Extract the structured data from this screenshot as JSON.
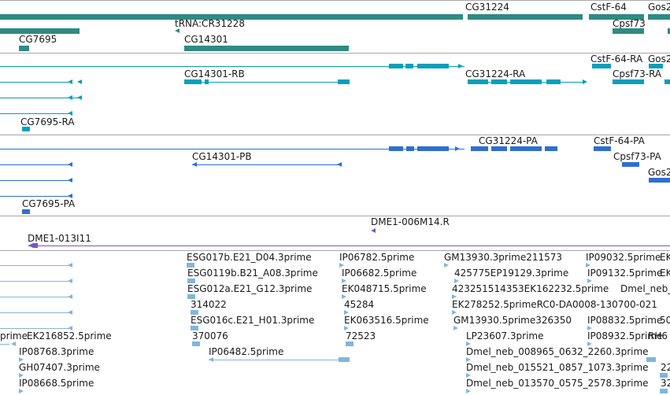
{
  "colors": {
    "gene": "#2e8b83",
    "transcript": "#06a0ba",
    "cds": "#2f6fcf",
    "clone": "#7b55c7",
    "est": "#7fb6df",
    "separator": "#a8a8a8"
  },
  "tracks": {
    "genes": {
      "labels": [
        "CG31224",
        "CstF-64",
        "Gos2",
        "tRNA:CR31228",
        "CG14301",
        "Cpsf73",
        "CG7695"
      ]
    },
    "transcripts": {
      "labels": [
        "CstF-64-RA",
        "CG14301-RB",
        "CG31224-RA",
        "Cpsf73-RA",
        "Gos2",
        "CG7695-RA"
      ]
    },
    "cds": {
      "labels": [
        "CG31224-PA",
        "CstF-64-PA",
        "CG14301-PB",
        "Cpsf73-PA",
        "Gos2",
        "CG7695-PA"
      ]
    },
    "clones": {
      "labels": [
        "DME1-006M14.R",
        "DME1-013I11"
      ]
    },
    "ests": {
      "labels": [
        "ESG017b.E21_D04.3prime",
        "IP06782.5prime",
        "GM13930.3prime211573",
        "IP09032.5prime",
        "EK",
        "ESG0119b.B21_A08.3prime",
        "IP06682.5prime",
        "425775EP19129.3prime",
        "IP09132.5prime",
        "EK",
        "ESG012a.E21_G12.3prime",
        "EK048715.5prime",
        "423251514353EK162232.5prime",
        "Dmel_neb_",
        "314022",
        "45284",
        "EK278252.5primeRC0-DA0008-130700-021",
        "ESG016c.E21_H01.3prime",
        "EK063516.5prime",
        "GM13930.5prime326350",
        "IP08832.5prime",
        "50",
        "370076",
        "72523",
        "LP23607.3prime",
        "IP08932.5prime",
        "RH6",
        "prime",
        "EK216852.5prime",
        "IP08768.3prime",
        "IP06482.5prime",
        "Dmel_neb_008965_0632_2260.3prime",
        "GH07407.3prime",
        "Dmel_neb_015521_0857_1073.3prime",
        "22",
        "IP08668.5prime",
        "Dmel_neb_013570_0575_2578.3prime",
        "32"
      ]
    }
  }
}
